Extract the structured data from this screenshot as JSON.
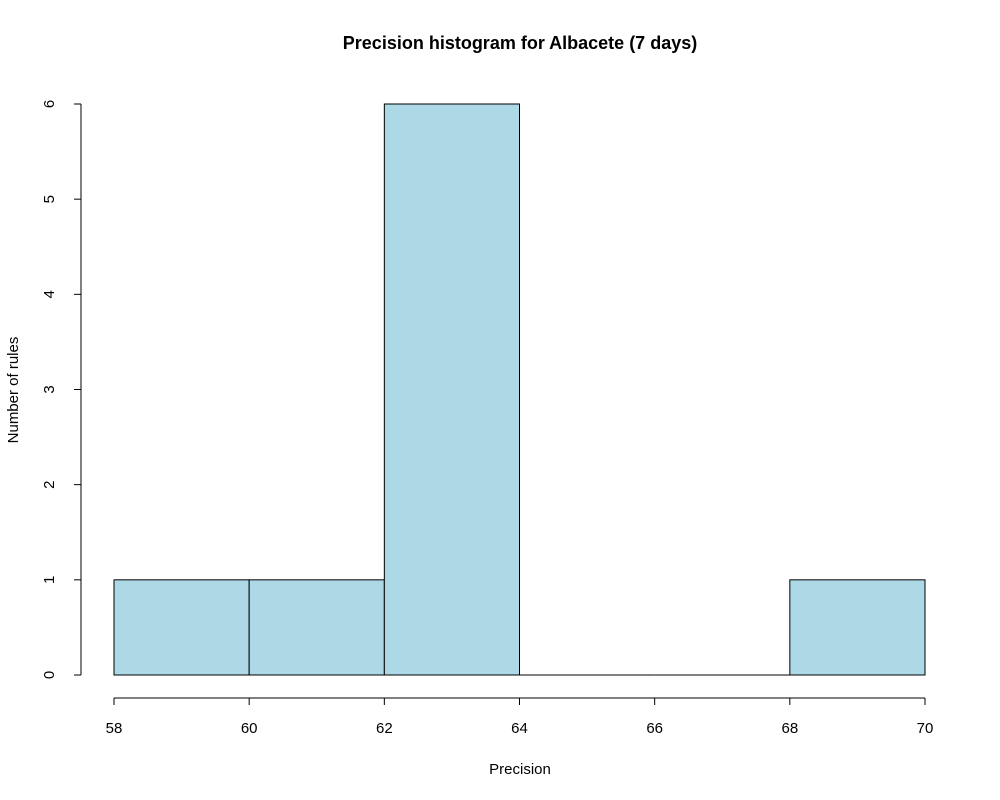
{
  "chart_data": {
    "type": "bar",
    "title": "Precision histogram for Albacete (7 days)",
    "xlabel": "Precision",
    "ylabel": "Number of rules",
    "bins": [
      {
        "start": 58,
        "end": 60,
        "count": 1
      },
      {
        "start": 60,
        "end": 62,
        "count": 1
      },
      {
        "start": 62,
        "end": 64,
        "count": 6
      },
      {
        "start": 64,
        "end": 66,
        "count": 0
      },
      {
        "start": 66,
        "end": 68,
        "count": 0
      },
      {
        "start": 68,
        "end": 70,
        "count": 1
      }
    ],
    "xlim": [
      58,
      70
    ],
    "ylim": [
      0,
      6
    ],
    "x_ticks": [
      "58",
      "60",
      "62",
      "64",
      "66",
      "68",
      "70"
    ],
    "y_ticks": [
      "0",
      "1",
      "2",
      "3",
      "4",
      "5",
      "6"
    ],
    "bar_color": "#add8e6",
    "grid": false,
    "legend": "none"
  }
}
